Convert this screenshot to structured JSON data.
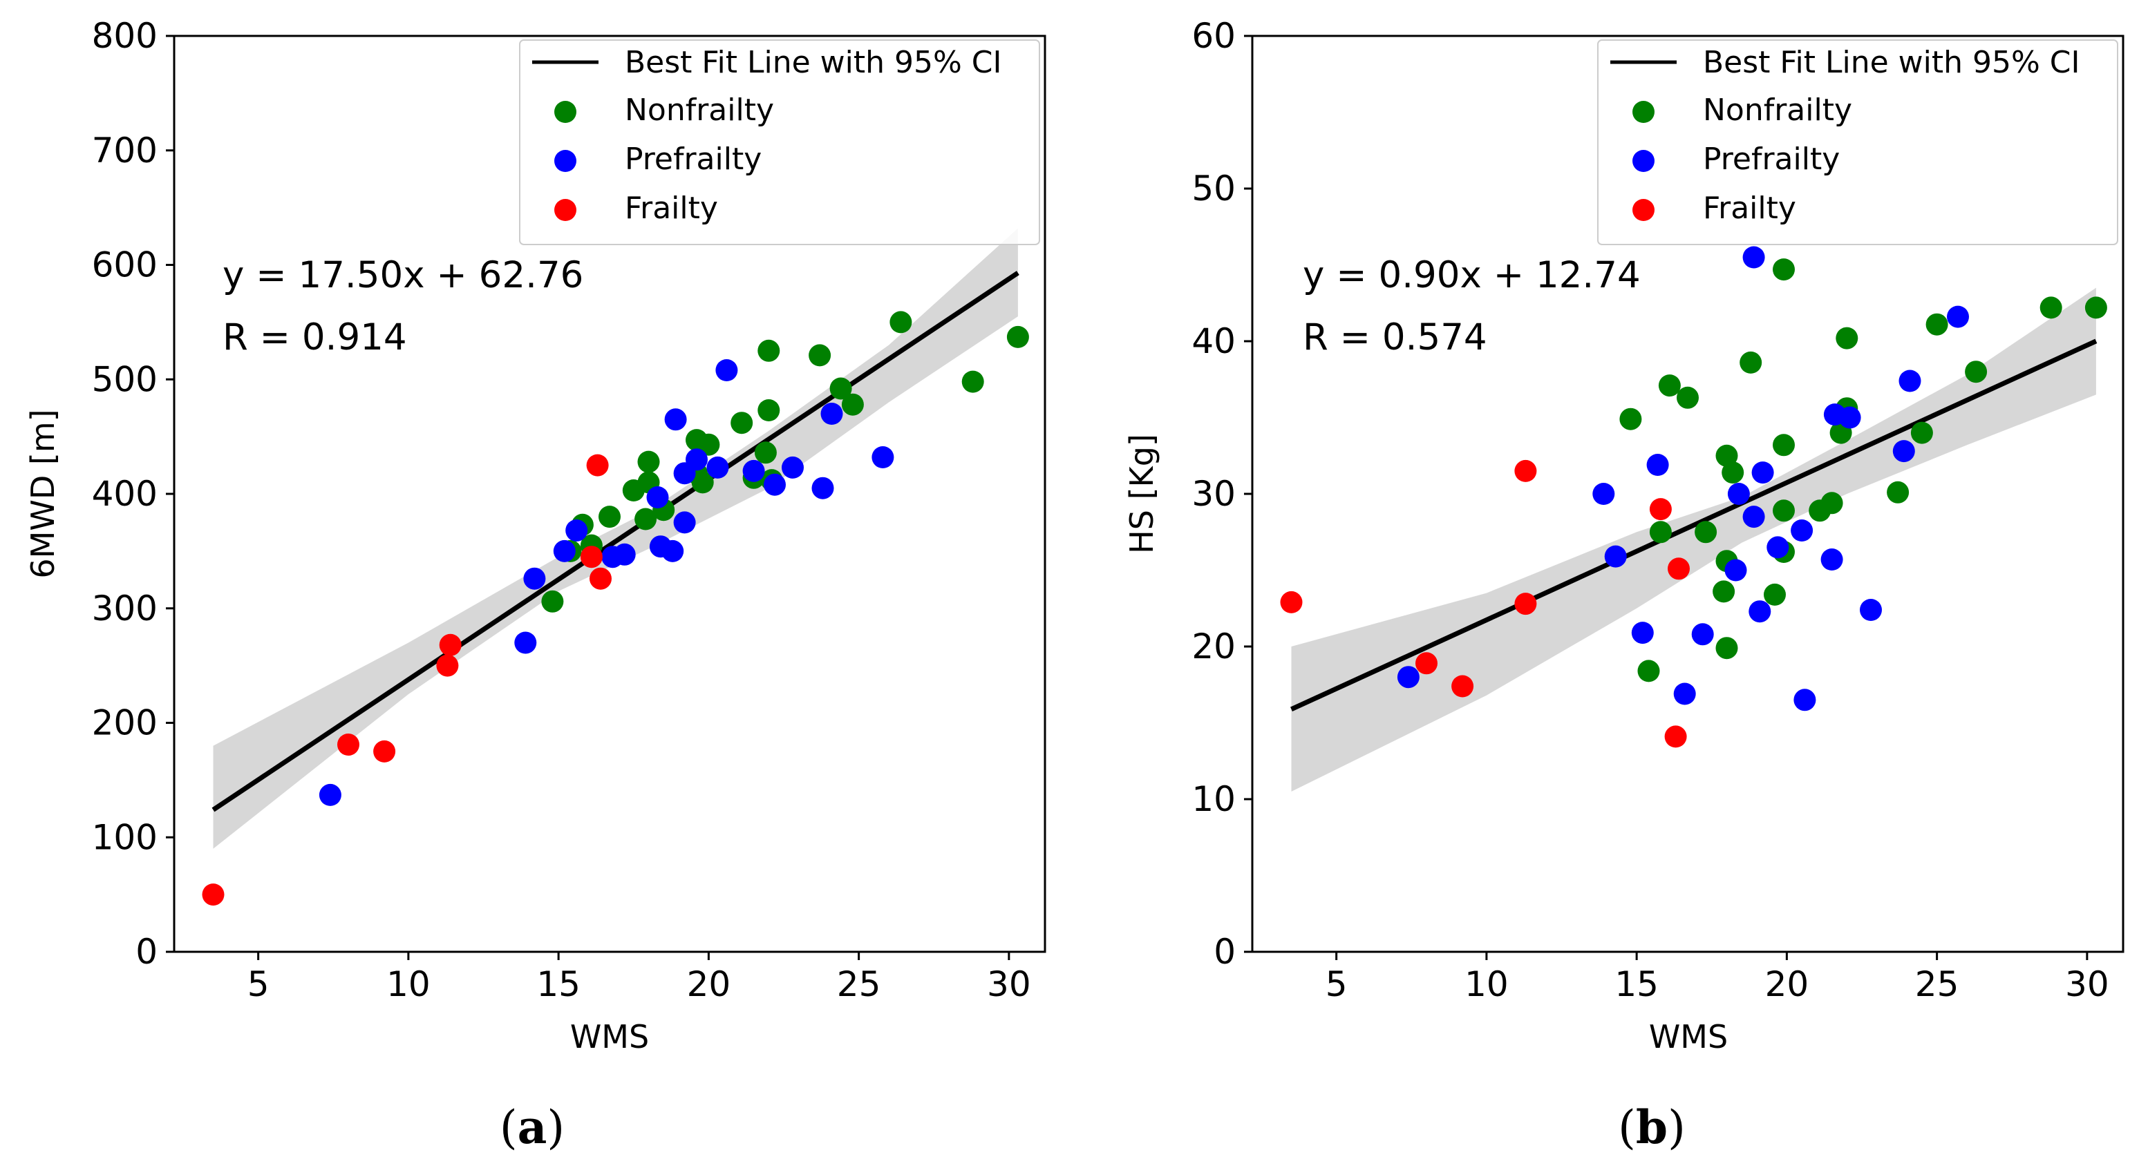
{
  "colors": {
    "nonfrailty": "#008000",
    "prefrailty": "#0000ff",
    "frailty": "#ff0000",
    "fit_line": "#000000",
    "ci_band": "#d3d3d3"
  },
  "legend": {
    "fit_line_label": "Best Fit Line with 95% CI",
    "nonfrailty_label": "Nonfrailty",
    "prefrailty_label": "Prefrailty",
    "frailty_label": "Frailty"
  },
  "chart_data": [
    {
      "id": "a",
      "type": "scatter",
      "caption": "a",
      "xlabel": "WMS",
      "ylabel": "6MWD [m]",
      "xlim": [
        2.2,
        31.2
      ],
      "ylim": [
        0,
        800
      ],
      "xticks": [
        5,
        10,
        15,
        20,
        25,
        30
      ],
      "yticks": [
        0,
        100,
        200,
        300,
        400,
        500,
        600,
        700,
        800
      ],
      "equation": "y = 17.50x + 62.76",
      "r_text": "R = 0.914",
      "fit": {
        "slope": 17.5,
        "intercept": 62.76,
        "x_range": [
          3.5,
          30.3
        ],
        "ci_upper": [
          [
            3.5,
            180
          ],
          [
            10,
            270
          ],
          [
            15,
            345
          ],
          [
            18,
            385
          ],
          [
            22,
            455
          ],
          [
            26,
            530
          ],
          [
            30.3,
            632
          ]
        ],
        "ci_lower": [
          [
            30.3,
            555
          ],
          [
            26,
            480
          ],
          [
            22,
            405
          ],
          [
            18,
            352
          ],
          [
            15,
            315
          ],
          [
            10,
            225
          ],
          [
            3.5,
            90
          ]
        ]
      },
      "series": [
        {
          "name": "Nonfrailty",
          "points": [
            [
              26.4,
              550
            ],
            [
              22,
              525
            ],
            [
              23.7,
              521
            ],
            [
              24.4,
              492
            ],
            [
              24.8,
              478
            ],
            [
              22,
              473
            ],
            [
              21.1,
              462
            ],
            [
              19.6,
              447
            ],
            [
              20,
              443
            ],
            [
              21.9,
              436
            ],
            [
              18,
              428
            ],
            [
              19.6,
              418
            ],
            [
              21.5,
              414
            ],
            [
              22.1,
              412
            ],
            [
              19.8,
              410
            ],
            [
              18,
              410
            ],
            [
              17.5,
              403
            ],
            [
              16.7,
              380
            ],
            [
              18.5,
              386
            ],
            [
              17.9,
              378
            ],
            [
              15.8,
              373
            ],
            [
              16.1,
              355
            ],
            [
              15.4,
              350
            ],
            [
              14.8,
              306
            ],
            [
              28.8,
              498
            ],
            [
              30.3,
              537
            ]
          ]
        },
        {
          "name": "Prefrailty",
          "points": [
            [
              20.6,
              508
            ],
            [
              18.9,
              465
            ],
            [
              24.1,
              470
            ],
            [
              19.6,
              430
            ],
            [
              21.5,
              420
            ],
            [
              20.3,
              423
            ],
            [
              22.8,
              423
            ],
            [
              19.2,
              418
            ],
            [
              25.8,
              432
            ],
            [
              22.2,
              408
            ],
            [
              23.8,
              405
            ],
            [
              18.3,
              397
            ],
            [
              18.4,
              354
            ],
            [
              18.8,
              350
            ],
            [
              19.2,
              375
            ],
            [
              15.6,
              368
            ],
            [
              16.8,
              345
            ],
            [
              17.2,
              347
            ],
            [
              15.2,
              350
            ],
            [
              14.2,
              326
            ],
            [
              13.9,
              270
            ],
            [
              7.4,
              137
            ]
          ]
        },
        {
          "name": "Frailty",
          "points": [
            [
              16.3,
              425
            ],
            [
              16.4,
              326
            ],
            [
              16.1,
              345
            ],
            [
              11.4,
              268
            ],
            [
              11.3,
              250
            ],
            [
              8,
              181
            ],
            [
              9.2,
              175
            ],
            [
              3.5,
              50
            ]
          ]
        }
      ]
    },
    {
      "id": "b",
      "type": "scatter",
      "caption": "b",
      "xlabel": "WMS",
      "ylabel": "HS [Kg]",
      "xlim": [
        2.2,
        31.2
      ],
      "ylim": [
        0,
        60
      ],
      "xticks": [
        5,
        10,
        15,
        20,
        25,
        30
      ],
      "yticks": [
        0,
        10,
        20,
        30,
        40,
        50,
        60
      ],
      "equation": "y = 0.90x + 12.74",
      "r_text": "R = 0.574",
      "fit": {
        "slope": 0.9,
        "intercept": 12.74,
        "x_range": [
          3.5,
          30.3
        ],
        "ci_upper": [
          [
            3.5,
            20
          ],
          [
            10,
            23.5
          ],
          [
            15,
            27.5
          ],
          [
            18.5,
            29.8
          ],
          [
            22,
            33.5
          ],
          [
            26,
            37.8
          ],
          [
            30.3,
            43.5
          ]
        ],
        "ci_lower": [
          [
            30.3,
            36.5
          ],
          [
            26,
            33.2
          ],
          [
            22,
            30
          ],
          [
            18.5,
            26.8
          ],
          [
            15,
            22.5
          ],
          [
            10,
            16.8
          ],
          [
            3.5,
            10.5
          ]
        ]
      },
      "series": [
        {
          "name": "Nonfrailty",
          "points": [
            [
              19.9,
              44.7
            ],
            [
              28.8,
              42.2
            ],
            [
              30.3,
              42.2
            ],
            [
              25,
              41.1
            ],
            [
              22,
              40.2
            ],
            [
              26.3,
              38
            ],
            [
              18.8,
              38.6
            ],
            [
              16.1,
              37.1
            ],
            [
              16.7,
              36.3
            ],
            [
              22,
              35.6
            ],
            [
              14.8,
              34.9
            ],
            [
              21.8,
              34
            ],
            [
              24.5,
              34
            ],
            [
              19.9,
              33.2
            ],
            [
              18,
              32.5
            ],
            [
              18.2,
              31.4
            ],
            [
              23.7,
              30.1
            ],
            [
              21.5,
              29.4
            ],
            [
              21.1,
              28.9
            ],
            [
              19.9,
              28.9
            ],
            [
              17.3,
              27.5
            ],
            [
              15.8,
              27.5
            ],
            [
              19.9,
              26.2
            ],
            [
              18,
              25.6
            ],
            [
              17.9,
              23.6
            ],
            [
              19.6,
              23.4
            ],
            [
              18,
              19.9
            ],
            [
              15.4,
              18.4
            ]
          ]
        },
        {
          "name": "Prefrailty",
          "points": [
            [
              18.9,
              45.5
            ],
            [
              25.7,
              41.6
            ],
            [
              24.1,
              37.4
            ],
            [
              22.1,
              35
            ],
            [
              21.6,
              35.2
            ],
            [
              23.9,
              32.8
            ],
            [
              15.7,
              31.9
            ],
            [
              19.2,
              31.4
            ],
            [
              13.9,
              30
            ],
            [
              18.4,
              30
            ],
            [
              18.9,
              28.5
            ],
            [
              20.5,
              27.6
            ],
            [
              19.7,
              26.5
            ],
            [
              14.3,
              25.9
            ],
            [
              21.5,
              25.7
            ],
            [
              18.3,
              25
            ],
            [
              22.8,
              22.4
            ],
            [
              19.1,
              22.3
            ],
            [
              15.2,
              20.9
            ],
            [
              17.2,
              20.8
            ],
            [
              7.4,
              18
            ],
            [
              16.6,
              16.9
            ],
            [
              20.6,
              16.5
            ]
          ]
        },
        {
          "name": "Frailty",
          "points": [
            [
              11.3,
              31.5
            ],
            [
              15.8,
              29
            ],
            [
              16.4,
              25.1
            ],
            [
              3.5,
              22.9
            ],
            [
              11.3,
              22.8
            ],
            [
              8,
              18.9
            ],
            [
              9.2,
              17.4
            ],
            [
              16.3,
              14.1
            ]
          ]
        }
      ]
    }
  ]
}
